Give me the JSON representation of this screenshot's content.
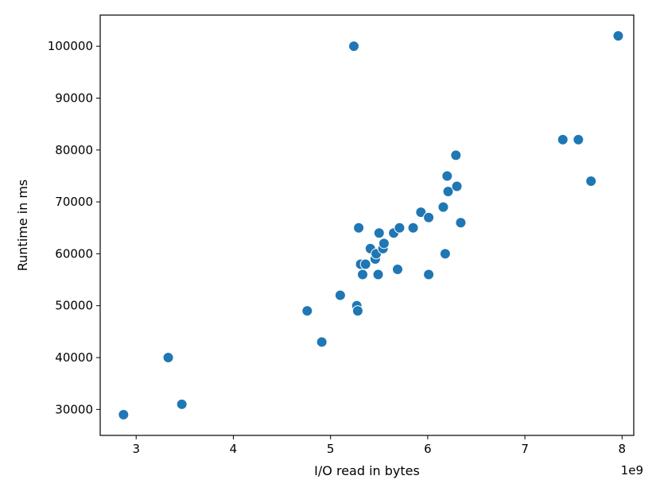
{
  "chart_data": {
    "type": "scatter",
    "title": "",
    "xlabel": "I/O read in bytes",
    "ylabel": "Runtime in ms",
    "x_offset_label": "1e9",
    "x_scale_factor": 1000000000,
    "xlim": [
      2.63,
      8.12
    ],
    "ylim": [
      25000,
      106000
    ],
    "xticks": [
      3,
      4,
      5,
      6,
      7,
      8
    ],
    "yticks": [
      30000,
      40000,
      50000,
      60000,
      70000,
      80000,
      90000,
      100000
    ],
    "grid": false,
    "marker_color": "#1f77b4",
    "points": [
      {
        "x": 2.87,
        "y": 29000
      },
      {
        "x": 3.33,
        "y": 40000
      },
      {
        "x": 3.47,
        "y": 31000
      },
      {
        "x": 4.76,
        "y": 49000
      },
      {
        "x": 4.91,
        "y": 43000
      },
      {
        "x": 5.1,
        "y": 52000
      },
      {
        "x": 5.24,
        "y": 100000
      },
      {
        "x": 5.27,
        "y": 50000
      },
      {
        "x": 5.28,
        "y": 49000
      },
      {
        "x": 5.29,
        "y": 65000
      },
      {
        "x": 5.31,
        "y": 58000
      },
      {
        "x": 5.33,
        "y": 56000
      },
      {
        "x": 5.36,
        "y": 58000
      },
      {
        "x": 5.41,
        "y": 61000
      },
      {
        "x": 5.46,
        "y": 59000
      },
      {
        "x": 5.47,
        "y": 60000
      },
      {
        "x": 5.49,
        "y": 56000
      },
      {
        "x": 5.5,
        "y": 64000
      },
      {
        "x": 5.54,
        "y": 61000
      },
      {
        "x": 5.55,
        "y": 62000
      },
      {
        "x": 5.65,
        "y": 64000
      },
      {
        "x": 5.69,
        "y": 57000
      },
      {
        "x": 5.71,
        "y": 65000
      },
      {
        "x": 5.85,
        "y": 65000
      },
      {
        "x": 5.93,
        "y": 68000
      },
      {
        "x": 6.01,
        "y": 67000
      },
      {
        "x": 6.01,
        "y": 56000
      },
      {
        "x": 6.16,
        "y": 69000
      },
      {
        "x": 6.18,
        "y": 60000
      },
      {
        "x": 6.2,
        "y": 75000
      },
      {
        "x": 6.21,
        "y": 72000
      },
      {
        "x": 6.29,
        "y": 79000
      },
      {
        "x": 6.3,
        "y": 73000
      },
      {
        "x": 6.34,
        "y": 66000
      },
      {
        "x": 7.39,
        "y": 82000
      },
      {
        "x": 7.55,
        "y": 82000
      },
      {
        "x": 7.68,
        "y": 74000
      },
      {
        "x": 7.96,
        "y": 102000
      }
    ]
  }
}
